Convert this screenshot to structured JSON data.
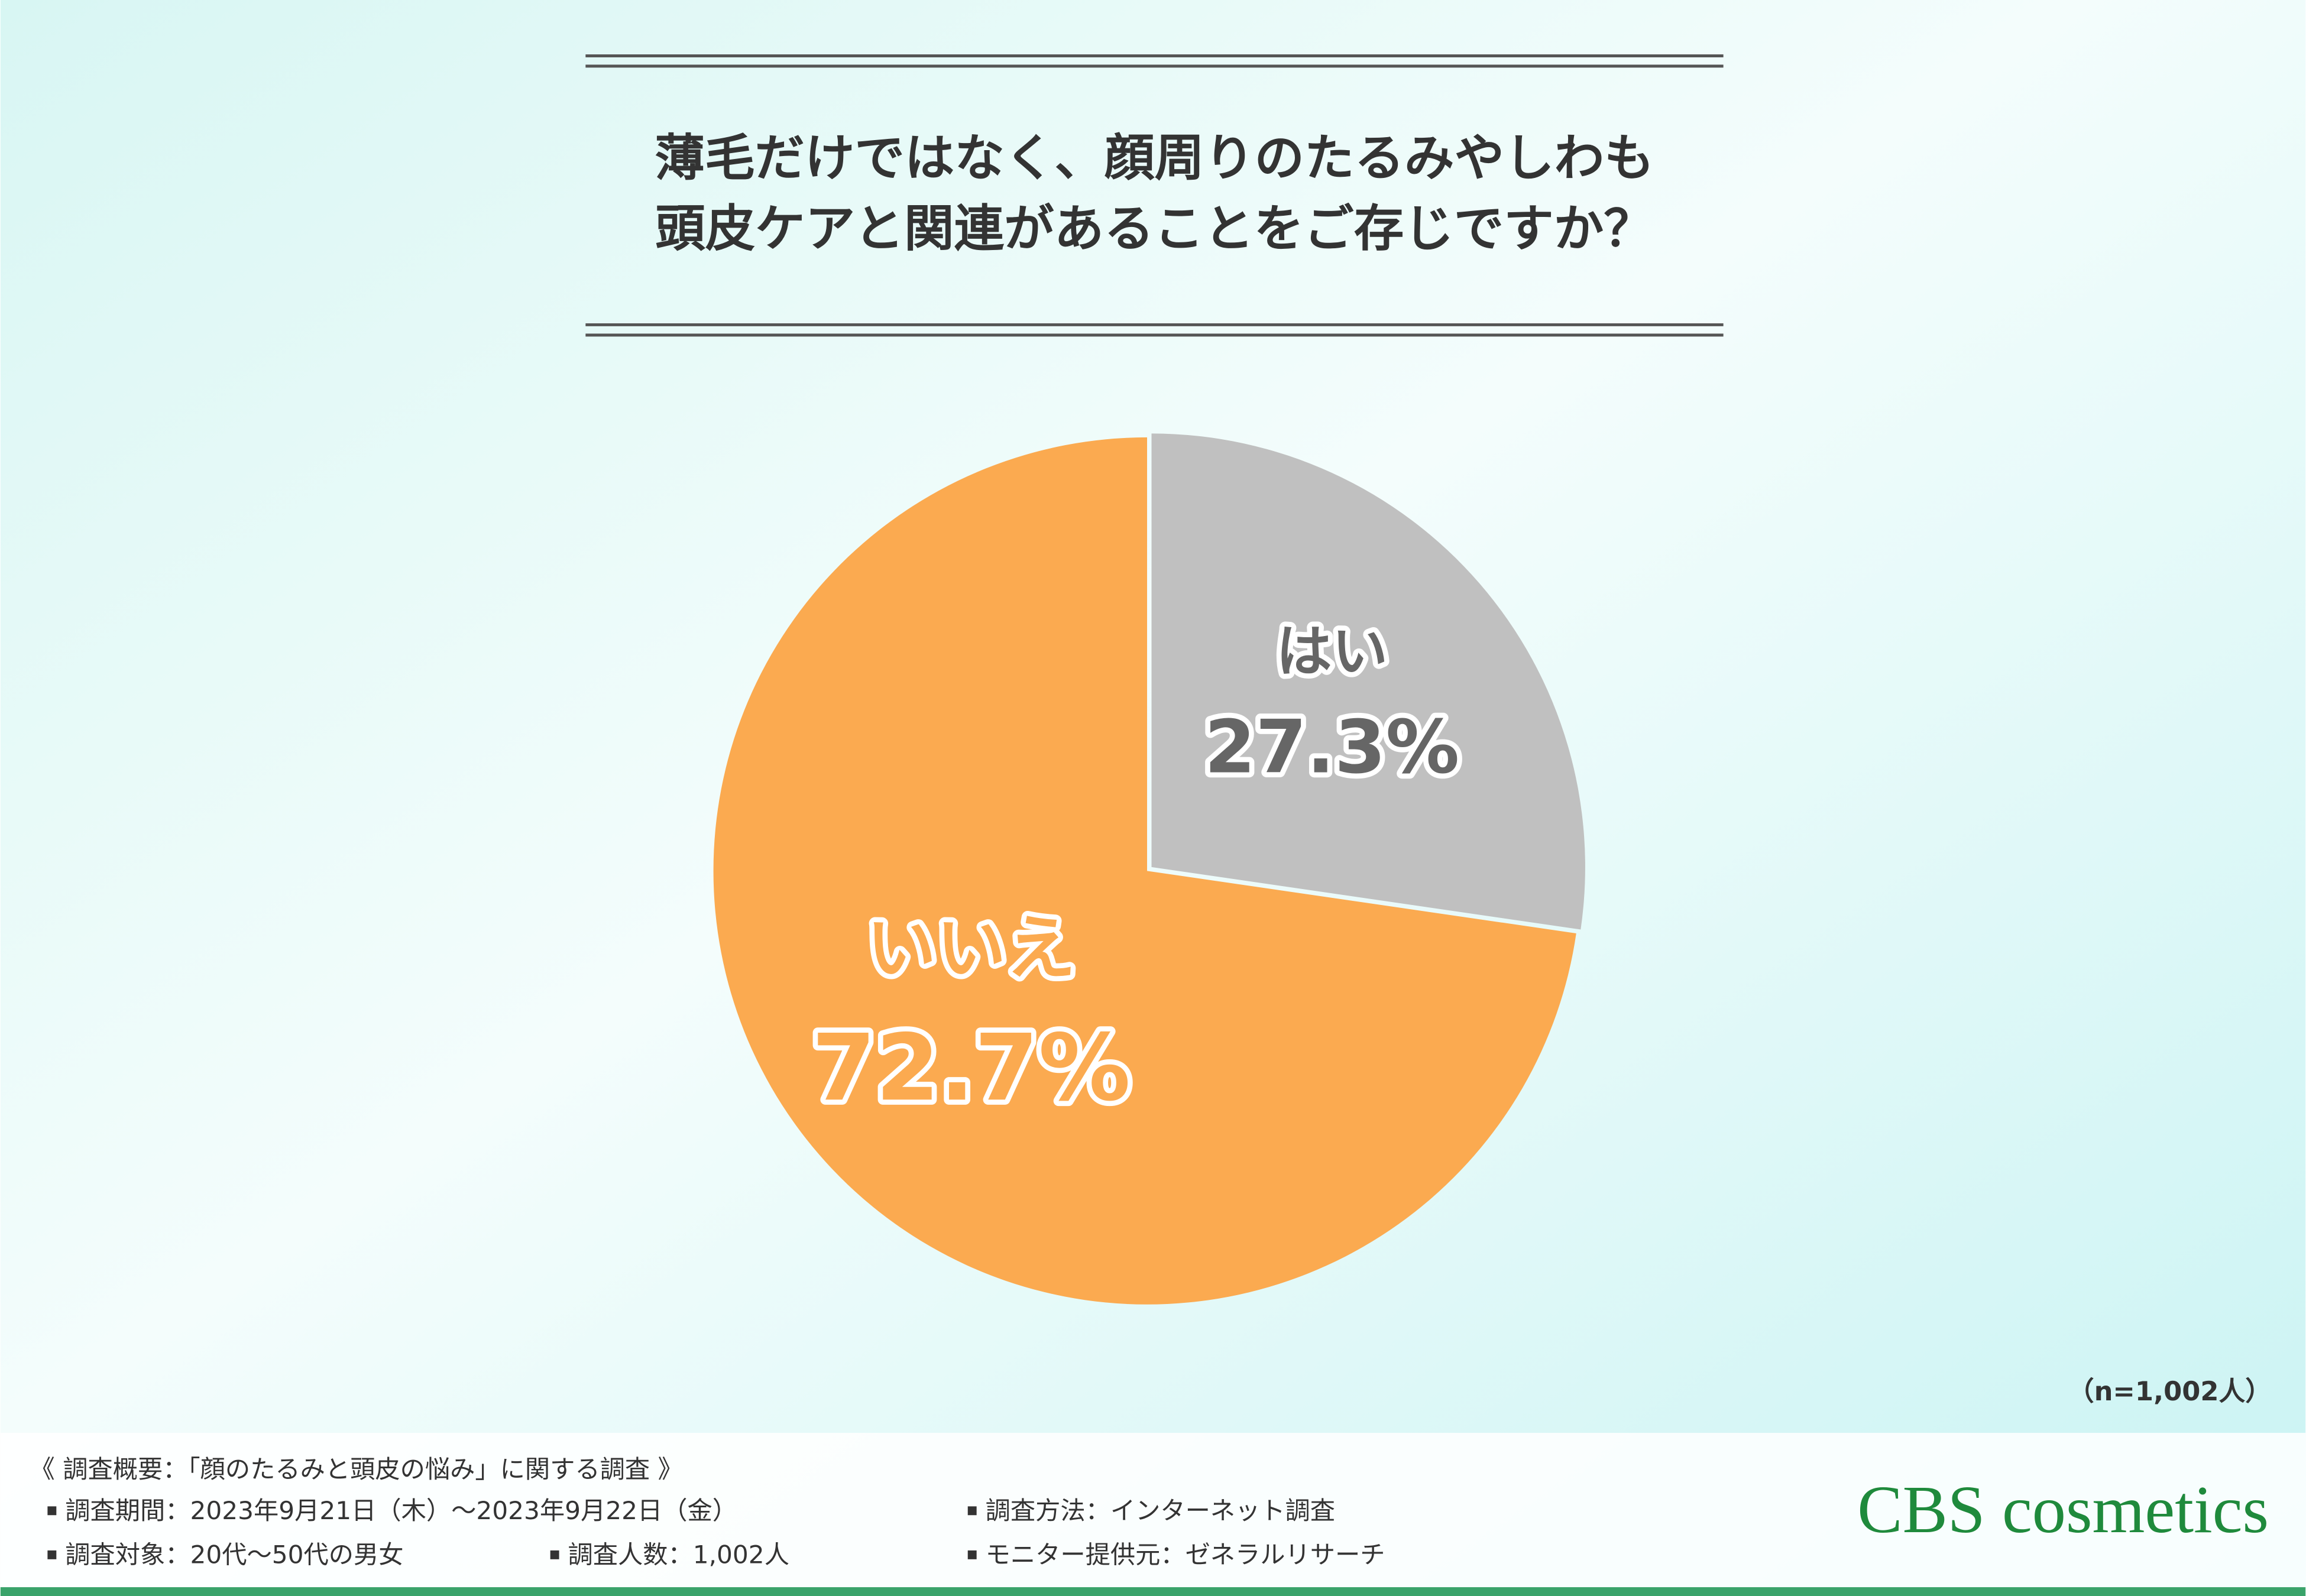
{
  "chart_data": {
    "type": "pie",
    "title": [
      "薄毛だけではなく、顔周りのたるみやしわも",
      "頭皮ケアと関連があることをご存じですか？"
    ],
    "categories": [
      "はい",
      "いいえ"
    ],
    "values": [
      27.3,
      72.7
    ],
    "value_labels": [
      "27.3%",
      "72.7%"
    ],
    "colors": [
      "#c0c0c0",
      "#fbaa50"
    ],
    "sample_note": "（n=1,002人）"
  },
  "footer": {
    "heading": "《 調査概要：「顔のたるみと頭皮の悩み」に関する調査 》",
    "items": [
      "調査期間：2023年9月21日（木）～2023年9月22日（金）",
      "調査方法：インターネット調査",
      "調査対象：20代～50代の男女",
      "調査人数：1,002人",
      "モニター提供元：ゼネラルリサーチ"
    ],
    "logo": "CBS cosmetics"
  }
}
